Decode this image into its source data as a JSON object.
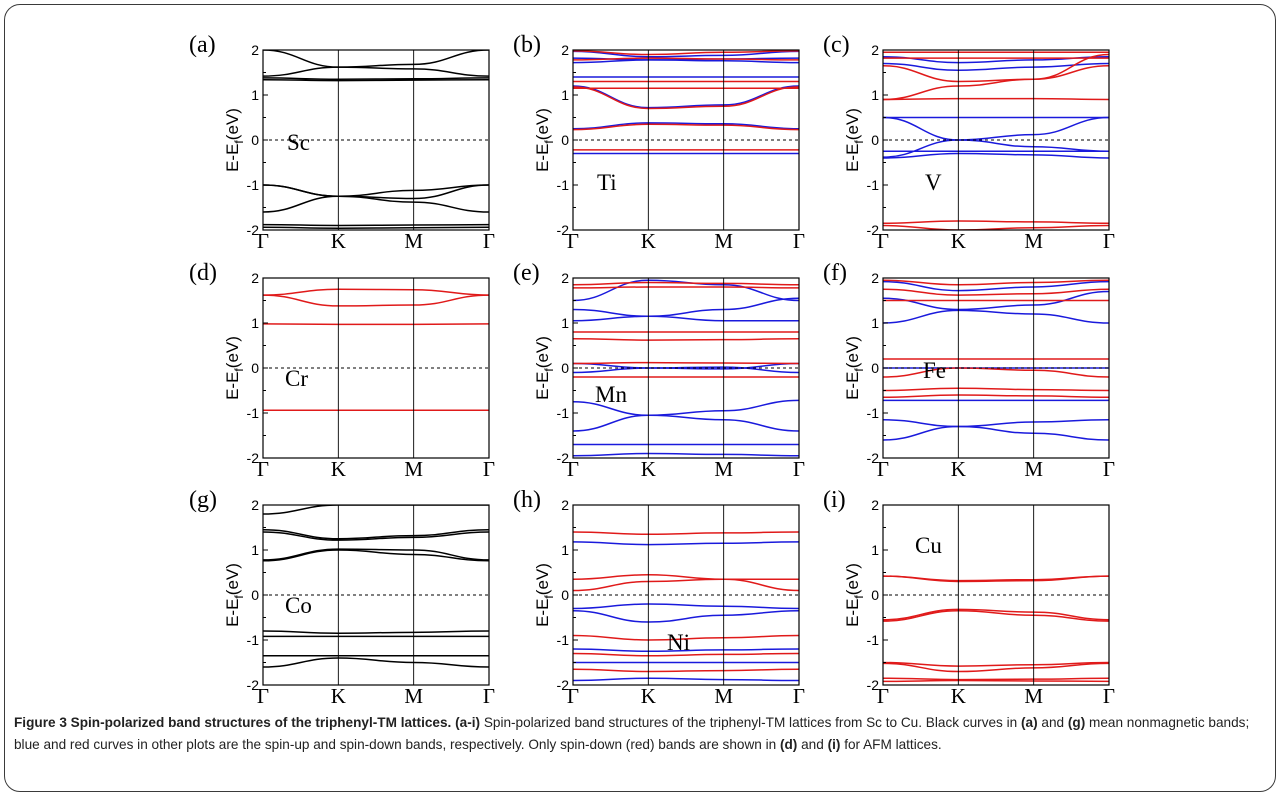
{
  "figure": {
    "caption": {
      "title": "Figure 3 Spin-polarized band structures of the triphenyl-TM lattices.",
      "range_label": "(a-i)",
      "sentence1": "Spin-polarized band structures of the triphenyl-TM lattices from Sc to Cu. Black curves in",
      "ref_a": "(a)",
      "and1": "and",
      "ref_g": "(g)",
      "sentence2": "mean nonmagnetic bands; blue and red curves in other plots are the spin-up and spin-down bands, respectively. Only spin-down (red) bands are shown in",
      "ref_d": "(d)",
      "and2": "and",
      "ref_i": "(i)",
      "sentence3": "for AFM lattices."
    },
    "colors": {
      "nonmagnetic": "#000000",
      "spin_up": "#1a1adc",
      "spin_down": "#e01a1a",
      "frame": "#3a3a3a"
    },
    "panels": [
      {
        "letter": "(a)",
        "element": "Sc"
      },
      {
        "letter": "(b)",
        "element": "Ti"
      },
      {
        "letter": "(c)",
        "element": "V"
      },
      {
        "letter": "(d)",
        "element": "Cr"
      },
      {
        "letter": "(e)",
        "element": "Mn"
      },
      {
        "letter": "(f)",
        "element": "Fe"
      },
      {
        "letter": "(g)",
        "element": "Co"
      },
      {
        "letter": "(h)",
        "element": "Ni"
      },
      {
        "letter": "(i)",
        "element": "Cu"
      }
    ],
    "axis": {
      "ylabel_main": "E-E",
      "ylabel_sub": "f",
      "ylabel_unit": "(eV)",
      "yticks": [
        "2",
        "1",
        "0",
        "-1",
        "-2"
      ],
      "xticks": [
        "Γ",
        "K",
        "M",
        "Γ"
      ]
    }
  },
  "chart_data": [
    {
      "type": "line",
      "panel": "(a)",
      "element": "Sc",
      "ylabel": "E-Ef(eV)",
      "ylim": [
        -2,
        2
      ],
      "x": [
        "Γ",
        "K",
        "M",
        "Γ"
      ],
      "band_color": "black",
      "series": [
        {
          "spin": "none",
          "values": [
            2.0,
            1.62,
            1.68,
            2.0
          ]
        },
        {
          "spin": "none",
          "values": [
            1.42,
            1.62,
            1.58,
            1.42
          ]
        },
        {
          "spin": "none",
          "values": [
            1.38,
            1.35,
            1.36,
            1.38
          ]
        },
        {
          "spin": "none",
          "values": [
            1.34,
            1.32,
            1.33,
            1.34
          ]
        },
        {
          "spin": "none",
          "values": [
            -1.0,
            -1.25,
            -1.12,
            -1.0
          ]
        },
        {
          "spin": "none",
          "values": [
            -1.0,
            -1.25,
            -1.3,
            -1.0
          ]
        },
        {
          "spin": "none",
          "values": [
            -1.6,
            -1.25,
            -1.38,
            -1.6
          ]
        },
        {
          "spin": "none",
          "values": [
            -1.88,
            -1.9,
            -1.89,
            -1.88
          ]
        },
        {
          "spin": "none",
          "values": [
            -1.94,
            -1.96,
            -1.95,
            -1.94
          ]
        }
      ]
    },
    {
      "type": "line",
      "panel": "(b)",
      "element": "Ti",
      "ylabel": "E-Ef(eV)",
      "ylim": [
        -2,
        2
      ],
      "x": [
        "Γ",
        "K",
        "M",
        "Γ"
      ],
      "series": [
        {
          "spin": "up",
          "values": [
            1.97,
            1.85,
            1.88,
            1.97
          ]
        },
        {
          "spin": "up",
          "values": [
            1.82,
            1.78,
            1.8,
            1.82
          ]
        },
        {
          "spin": "up",
          "values": [
            1.72,
            1.78,
            1.76,
            1.72
          ]
        },
        {
          "spin": "up",
          "values": [
            1.4,
            1.4,
            1.4,
            1.4
          ]
        },
        {
          "spin": "up",
          "values": [
            1.2,
            0.72,
            0.78,
            1.2
          ]
        },
        {
          "spin": "up",
          "values": [
            0.25,
            0.38,
            0.36,
            0.25
          ]
        },
        {
          "spin": "up",
          "values": [
            -0.3,
            -0.3,
            -0.3,
            -0.3
          ]
        },
        {
          "spin": "down",
          "values": [
            1.98,
            1.9,
            1.95,
            1.98
          ]
        },
        {
          "spin": "down",
          "values": [
            1.78,
            1.82,
            1.8,
            1.78
          ]
        },
        {
          "spin": "down",
          "values": [
            1.3,
            1.3,
            1.3,
            1.3
          ]
        },
        {
          "spin": "down",
          "values": [
            1.15,
            1.15,
            1.15,
            1.15
          ]
        },
        {
          "spin": "down",
          "values": [
            1.18,
            0.7,
            0.75,
            1.18
          ]
        },
        {
          "spin": "down",
          "values": [
            0.23,
            0.35,
            0.33,
            0.23
          ]
        },
        {
          "spin": "down",
          "values": [
            -0.22,
            -0.22,
            -0.22,
            -0.22
          ]
        }
      ]
    },
    {
      "type": "line",
      "panel": "(c)",
      "element": "V",
      "ylabel": "E-Ef(eV)",
      "ylim": [
        -2,
        2
      ],
      "x": [
        "Γ",
        "K",
        "M",
        "Γ"
      ],
      "series": [
        {
          "spin": "up",
          "values": [
            1.85,
            1.72,
            1.78,
            1.85
          ]
        },
        {
          "spin": "up",
          "values": [
            1.7,
            1.55,
            1.62,
            1.7
          ]
        },
        {
          "spin": "up",
          "values": [
            0.5,
            0.5,
            0.5,
            0.5
          ]
        },
        {
          "spin": "up",
          "values": [
            -0.38,
            0.0,
            0.12,
            0.5
          ]
        },
        {
          "spin": "up",
          "values": [
            0.5,
            0.0,
            -0.15,
            -0.25
          ]
        },
        {
          "spin": "up",
          "values": [
            -0.25,
            -0.25,
            -0.25,
            -0.25
          ]
        },
        {
          "spin": "up",
          "values": [
            -0.4,
            -0.3,
            -0.33,
            -0.4
          ]
        },
        {
          "spin": "down",
          "values": [
            1.95,
            1.95,
            1.95,
            1.95
          ]
        },
        {
          "spin": "down",
          "values": [
            1.82,
            1.82,
            1.82,
            1.82
          ]
        },
        {
          "spin": "down",
          "values": [
            1.65,
            1.3,
            1.35,
            1.65
          ]
        },
        {
          "spin": "down",
          "values": [
            0.9,
            1.2,
            1.35,
            1.9
          ]
        },
        {
          "spin": "down",
          "values": [
            0.9,
            0.92,
            0.92,
            0.9
          ]
        },
        {
          "spin": "down",
          "values": [
            -1.85,
            -1.8,
            -1.82,
            -1.85
          ]
        },
        {
          "spin": "down",
          "values": [
            -1.9,
            -2.0,
            -1.95,
            -1.9
          ]
        }
      ]
    },
    {
      "type": "line",
      "panel": "(d)",
      "element": "Cr",
      "ylabel": "E-Ef(eV)",
      "ylim": [
        -2,
        2
      ],
      "x": [
        "Γ",
        "K",
        "M",
        "Γ"
      ],
      "series": [
        {
          "spin": "down",
          "values": [
            1.62,
            1.75,
            1.74,
            1.62
          ]
        },
        {
          "spin": "down",
          "values": [
            1.62,
            1.38,
            1.4,
            1.62
          ]
        },
        {
          "spin": "down",
          "values": [
            0.98,
            0.97,
            0.97,
            0.98
          ]
        },
        {
          "spin": "down",
          "values": [
            -0.94,
            -0.94,
            -0.94,
            -0.94
          ]
        }
      ]
    },
    {
      "type": "line",
      "panel": "(e)",
      "element": "Mn",
      "ylabel": "E-Ef(eV)",
      "ylim": [
        -2,
        2
      ],
      "x": [
        "Γ",
        "K",
        "M",
        "Γ"
      ],
      "series": [
        {
          "spin": "up",
          "values": [
            1.5,
            1.95,
            1.85,
            1.5
          ]
        },
        {
          "spin": "up",
          "values": [
            1.05,
            1.15,
            1.3,
            1.55
          ]
        },
        {
          "spin": "up",
          "values": [
            1.3,
            1.15,
            1.05,
            1.05
          ]
        },
        {
          "spin": "up",
          "values": [
            0.1,
            0.0,
            -0.02,
            0.1
          ]
        },
        {
          "spin": "up",
          "values": [
            -0.1,
            0.0,
            0.02,
            -0.1
          ]
        },
        {
          "spin": "up",
          "values": [
            -0.75,
            -1.05,
            -0.95,
            -0.72
          ]
        },
        {
          "spin": "up",
          "values": [
            -1.4,
            -1.05,
            -1.15,
            -1.4
          ]
        },
        {
          "spin": "up",
          "values": [
            -1.7,
            -1.7,
            -1.7,
            -1.7
          ]
        },
        {
          "spin": "up",
          "values": [
            -1.95,
            -1.9,
            -1.92,
            -1.95
          ]
        },
        {
          "spin": "down",
          "values": [
            1.85,
            1.9,
            1.88,
            1.85
          ]
        },
        {
          "spin": "down",
          "values": [
            1.78,
            1.8,
            1.8,
            1.78
          ]
        },
        {
          "spin": "down",
          "values": [
            0.8,
            0.8,
            0.8,
            0.8
          ]
        },
        {
          "spin": "down",
          "values": [
            0.65,
            0.62,
            0.63,
            0.65
          ]
        },
        {
          "spin": "down",
          "values": [
            0.1,
            0.12,
            0.11,
            0.1
          ]
        },
        {
          "spin": "down",
          "values": [
            -0.2,
            -0.2,
            -0.2,
            -0.2
          ]
        }
      ]
    },
    {
      "type": "line",
      "panel": "(f)",
      "element": "Fe",
      "ylabel": "E-Ef(eV)",
      "ylim": [
        -2,
        2
      ],
      "x": [
        "Γ",
        "K",
        "M",
        "Γ"
      ],
      "series": [
        {
          "spin": "up",
          "values": [
            1.92,
            1.72,
            1.8,
            1.92
          ]
        },
        {
          "spin": "up",
          "values": [
            1.55,
            1.3,
            1.4,
            1.7
          ]
        },
        {
          "spin": "up",
          "values": [
            1.0,
            1.28,
            1.2,
            1.0
          ]
        },
        {
          "spin": "up",
          "values": [
            0.0,
            0.0,
            0.0,
            0.0
          ]
        },
        {
          "spin": "up",
          "values": [
            -0.72,
            -0.72,
            -0.72,
            -0.72
          ]
        },
        {
          "spin": "up",
          "values": [
            -1.6,
            -1.3,
            -1.45,
            -1.6
          ]
        },
        {
          "spin": "up",
          "values": [
            -1.15,
            -1.3,
            -1.2,
            -1.15
          ]
        },
        {
          "spin": "down",
          "values": [
            1.95,
            1.85,
            1.9,
            1.95
          ]
        },
        {
          "spin": "down",
          "values": [
            1.75,
            1.62,
            1.65,
            1.75
          ]
        },
        {
          "spin": "down",
          "values": [
            1.5,
            1.5,
            1.5,
            1.5
          ]
        },
        {
          "spin": "down",
          "values": [
            0.2,
            0.2,
            0.2,
            0.2
          ]
        },
        {
          "spin": "down",
          "values": [
            -0.2,
            0.0,
            -0.05,
            -0.2
          ]
        },
        {
          "spin": "down",
          "values": [
            -0.5,
            -0.45,
            -0.48,
            -0.5
          ]
        },
        {
          "spin": "down",
          "values": [
            -0.65,
            -0.6,
            -0.62,
            -0.65
          ]
        }
      ]
    },
    {
      "type": "line",
      "panel": "(g)",
      "element": "Co",
      "ylabel": "E-Ef(eV)",
      "ylim": [
        -2,
        2
      ],
      "x": [
        "Γ",
        "K",
        "M",
        "Γ"
      ],
      "band_color": "black",
      "series": [
        {
          "spin": "none",
          "values": [
            1.8,
            2.0,
            2.0,
            2.0
          ]
        },
        {
          "spin": "none",
          "values": [
            1.45,
            1.25,
            1.32,
            1.45
          ]
        },
        {
          "spin": "none",
          "values": [
            1.4,
            1.22,
            1.28,
            1.4
          ]
        },
        {
          "spin": "none",
          "values": [
            0.78,
            1.02,
            1.0,
            0.78
          ]
        },
        {
          "spin": "none",
          "values": [
            0.76,
            1.0,
            0.9,
            0.76
          ]
        },
        {
          "spin": "none",
          "values": [
            -0.8,
            -0.85,
            -0.83,
            -0.8
          ]
        },
        {
          "spin": "none",
          "values": [
            -0.92,
            -0.92,
            -0.92,
            -0.92
          ]
        },
        {
          "spin": "none",
          "values": [
            -1.35,
            -1.35,
            -1.35,
            -1.35
          ]
        },
        {
          "spin": "none",
          "values": [
            -1.6,
            -1.4,
            -1.5,
            -1.6
          ]
        }
      ]
    },
    {
      "type": "line",
      "panel": "(h)",
      "element": "Ni",
      "ylabel": "E-Ef(eV)",
      "ylim": [
        -2,
        2
      ],
      "x": [
        "Γ",
        "K",
        "M",
        "Γ"
      ],
      "series": [
        {
          "spin": "up",
          "values": [
            1.18,
            1.12,
            1.15,
            1.18
          ]
        },
        {
          "spin": "up",
          "values": [
            -0.3,
            -0.2,
            -0.25,
            -0.3
          ]
        },
        {
          "spin": "up",
          "values": [
            -0.35,
            -0.6,
            -0.45,
            -0.35
          ]
        },
        {
          "spin": "up",
          "values": [
            -1.2,
            -1.25,
            -1.22,
            -1.2
          ]
        },
        {
          "spin": "up",
          "values": [
            -1.5,
            -1.5,
            -1.5,
            -1.5
          ]
        },
        {
          "spin": "up",
          "values": [
            -1.9,
            -1.85,
            -1.88,
            -1.9
          ]
        },
        {
          "spin": "down",
          "values": [
            1.4,
            1.35,
            1.38,
            1.4
          ]
        },
        {
          "spin": "down",
          "values": [
            0.35,
            0.45,
            0.35,
            0.35
          ]
        },
        {
          "spin": "down",
          "values": [
            0.1,
            0.3,
            0.35,
            0.1
          ]
        },
        {
          "spin": "down",
          "values": [
            -0.9,
            -1.0,
            -0.95,
            -0.9
          ]
        },
        {
          "spin": "down",
          "values": [
            -1.3,
            -1.35,
            -1.32,
            -1.3
          ]
        },
        {
          "spin": "down",
          "values": [
            -1.65,
            -1.7,
            -1.68,
            -1.65
          ]
        }
      ]
    },
    {
      "type": "line",
      "panel": "(i)",
      "element": "Cu",
      "ylabel": "E-Ef(eV)",
      "ylim": [
        -2,
        2
      ],
      "x": [
        "Γ",
        "K",
        "M",
        "Γ"
      ],
      "series": [
        {
          "spin": "down",
          "values": [
            0.42,
            0.32,
            0.34,
            0.42
          ]
        },
        {
          "spin": "down",
          "values": [
            0.42,
            0.3,
            0.32,
            0.42
          ]
        },
        {
          "spin": "down",
          "values": [
            -0.55,
            -0.32,
            -0.38,
            -0.55
          ]
        },
        {
          "spin": "down",
          "values": [
            -0.58,
            -0.35,
            -0.45,
            -0.58
          ]
        },
        {
          "spin": "down",
          "values": [
            -1.5,
            -1.58,
            -1.55,
            -1.5
          ]
        },
        {
          "spin": "down",
          "values": [
            -1.52,
            -1.7,
            -1.62,
            -1.52
          ]
        },
        {
          "spin": "down",
          "values": [
            -1.85,
            -1.88,
            -1.87,
            -1.85
          ]
        },
        {
          "spin": "down",
          "values": [
            -1.92,
            -1.9,
            -1.91,
            -1.92
          ]
        }
      ]
    }
  ]
}
